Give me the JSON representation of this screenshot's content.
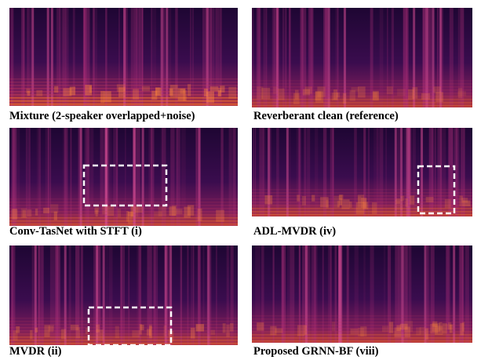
{
  "panels": [
    {
      "caption": "Mixture (2-speaker overlapped+noise)"
    },
    {
      "caption": "Reverberant clean (reference)"
    },
    {
      "caption": "Conv-TasNet with STFT (i)"
    },
    {
      "caption": "ADL-MVDR (iv)"
    },
    {
      "caption": "MVDR (ii)"
    },
    {
      "caption": "Proposed GRNN-BF (viii)"
    }
  ]
}
